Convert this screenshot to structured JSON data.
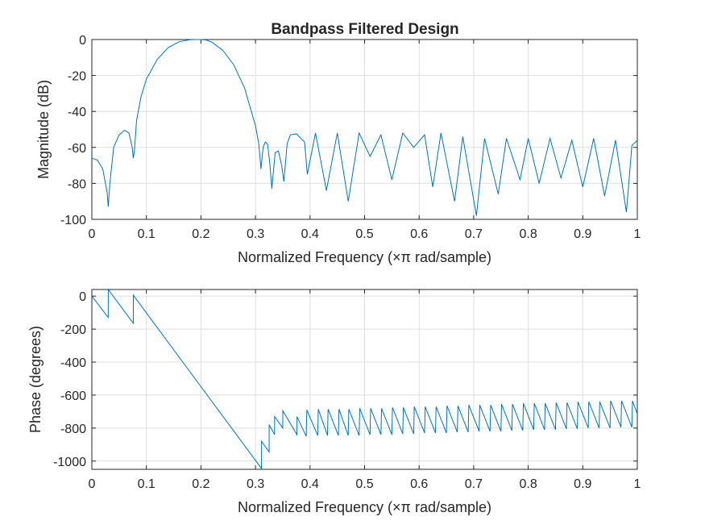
{
  "figure": {
    "title": "Bandpass Filtered Design"
  },
  "chart_data": [
    {
      "type": "line",
      "title": "Bandpass Filtered Design",
      "xlabel": "Normalized Frequency  (×π rad/sample)",
      "ylabel": "Magnitude (dB)",
      "xlim": [
        0,
        1
      ],
      "ylim": [
        -100,
        0
      ],
      "xticks": [
        0,
        0.1,
        0.2,
        0.3,
        0.4,
        0.5,
        0.6,
        0.7,
        0.8,
        0.9,
        1
      ],
      "xtick_labels": [
        "0",
        "0.1",
        "0.2",
        "0.3",
        "0.4",
        "0.5",
        "0.6",
        "0.7",
        "0.8",
        "0.9",
        "1"
      ],
      "yticks": [
        -100,
        -80,
        -60,
        -40,
        -20,
        0
      ],
      "ytick_labels": [
        "-100",
        "-80",
        "-60",
        "-40",
        "-20",
        "0"
      ],
      "grid": true,
      "color": "#0072bd",
      "series": [
        {
          "x": [
            0,
            0.01,
            0.02,
            0.028,
            0.03,
            0.033,
            0.04,
            0.05,
            0.06,
            0.068,
            0.074,
            0.076,
            0.078,
            0.082,
            0.09,
            0.1,
            0.12,
            0.14,
            0.16,
            0.18,
            0.19,
            0.2,
            0.21,
            0.22,
            0.24,
            0.26,
            0.28,
            0.3,
            0.306,
            0.31,
            0.312,
            0.314,
            0.318,
            0.322,
            0.326,
            0.33,
            0.336,
            0.342,
            0.348,
            0.352,
            0.358,
            0.364,
            0.375,
            0.39,
            0.395,
            0.41,
            0.43,
            0.45,
            0.47,
            0.49,
            0.51,
            0.53,
            0.55,
            0.57,
            0.59,
            0.61,
            0.625,
            0.64,
            0.665,
            0.68,
            0.705,
            0.72,
            0.745,
            0.76,
            0.785,
            0.8,
            0.82,
            0.84,
            0.86,
            0.88,
            0.9,
            0.92,
            0.94,
            0.96,
            0.98,
            0.99,
            1
          ],
          "y": [
            -66,
            -67,
            -72,
            -85,
            -93,
            -80,
            -60,
            -53,
            -50.5,
            -52,
            -60,
            -66,
            -62,
            -45,
            -32,
            -22,
            -11,
            -4.5,
            -1.2,
            -0.1,
            0,
            0,
            -0.3,
            -1.5,
            -6,
            -14,
            -27,
            -48,
            -58,
            -72,
            -66,
            -60,
            -57,
            -58,
            -68,
            -83,
            -63,
            -62,
            -70,
            -79,
            -58,
            -53,
            -52.5,
            -57,
            -75,
            -52,
            -84,
            -52,
            -90,
            -52,
            -65,
            -53,
            -78,
            -52,
            -60,
            -53,
            -82,
            -52,
            -90,
            -54,
            -98,
            -55,
            -86,
            -55,
            -78,
            -55,
            -80,
            -55,
            -77,
            -56,
            -82,
            -55,
            -87,
            -56,
            -96,
            -59,
            -56
          ]
        }
      ]
    },
    {
      "type": "line",
      "title": "",
      "xlabel": "Normalized Frequency  (×π rad/sample)",
      "ylabel": "Phase (degrees)",
      "xlim": [
        0,
        1
      ],
      "ylim": [
        -1050,
        40
      ],
      "xticks": [
        0,
        0.1,
        0.2,
        0.3,
        0.4,
        0.5,
        0.6,
        0.7,
        0.8,
        0.9,
        1
      ],
      "xtick_labels": [
        "0",
        "0.1",
        "0.2",
        "0.3",
        "0.4",
        "0.5",
        "0.6",
        "0.7",
        "0.8",
        "0.9",
        "1"
      ],
      "yticks": [
        -1000,
        -800,
        -600,
        -400,
        -200,
        0
      ],
      "ytick_labels": [
        "-1000",
        "-800",
        "-600",
        "-400",
        "-200",
        "0"
      ],
      "grid": true,
      "color": "#0072bd",
      "series": [
        {
          "x": [
            0,
            0.03,
            0.0301,
            0.076,
            0.0761,
            0.311,
            0.3111,
            0.325,
            0.3251,
            0.335,
            0.3351,
            0.35,
            0.3501,
            0.376,
            0.3761,
            0.393,
            0.3941,
            0.414,
            0.4151,
            0.432,
            0.4331,
            0.452,
            0.4531,
            0.47,
            0.4711,
            0.49,
            0.4911,
            0.51,
            0.5111,
            0.53,
            0.5311,
            0.55,
            0.5511,
            0.57,
            0.5711,
            0.59,
            0.5911,
            0.61,
            0.6111,
            0.63,
            0.6311,
            0.65,
            0.6511,
            0.67,
            0.6711,
            0.69,
            0.6911,
            0.71,
            0.7111,
            0.73,
            0.7311,
            0.75,
            0.7511,
            0.77,
            0.7711,
            0.79,
            0.7911,
            0.81,
            0.8111,
            0.83,
            0.8311,
            0.85,
            0.8511,
            0.87,
            0.8711,
            0.89,
            0.8911,
            0.91,
            0.9111,
            0.93,
            0.9311,
            0.95,
            0.9511,
            0.97,
            0.9711,
            0.99,
            0.9911,
            1
          ],
          "y": [
            0,
            -130,
            40,
            -165,
            5,
            -1045,
            -880,
            -945,
            -780,
            -840,
            -730,
            -800,
            -695,
            -840,
            -730,
            -850,
            -690,
            -845,
            -685,
            -845,
            -685,
            -845,
            -685,
            -845,
            -685,
            -845,
            -680,
            -840,
            -680,
            -840,
            -680,
            -840,
            -675,
            -835,
            -675,
            -835,
            -670,
            -830,
            -670,
            -830,
            -670,
            -830,
            -665,
            -825,
            -665,
            -825,
            -660,
            -820,
            -660,
            -820,
            -660,
            -820,
            -655,
            -815,
            -655,
            -815,
            -650,
            -810,
            -650,
            -810,
            -650,
            -810,
            -645,
            -805,
            -645,
            -805,
            -640,
            -800,
            -640,
            -800,
            -640,
            -800,
            -635,
            -795,
            -635,
            -795,
            -635,
            -715
          ]
        }
      ]
    }
  ]
}
